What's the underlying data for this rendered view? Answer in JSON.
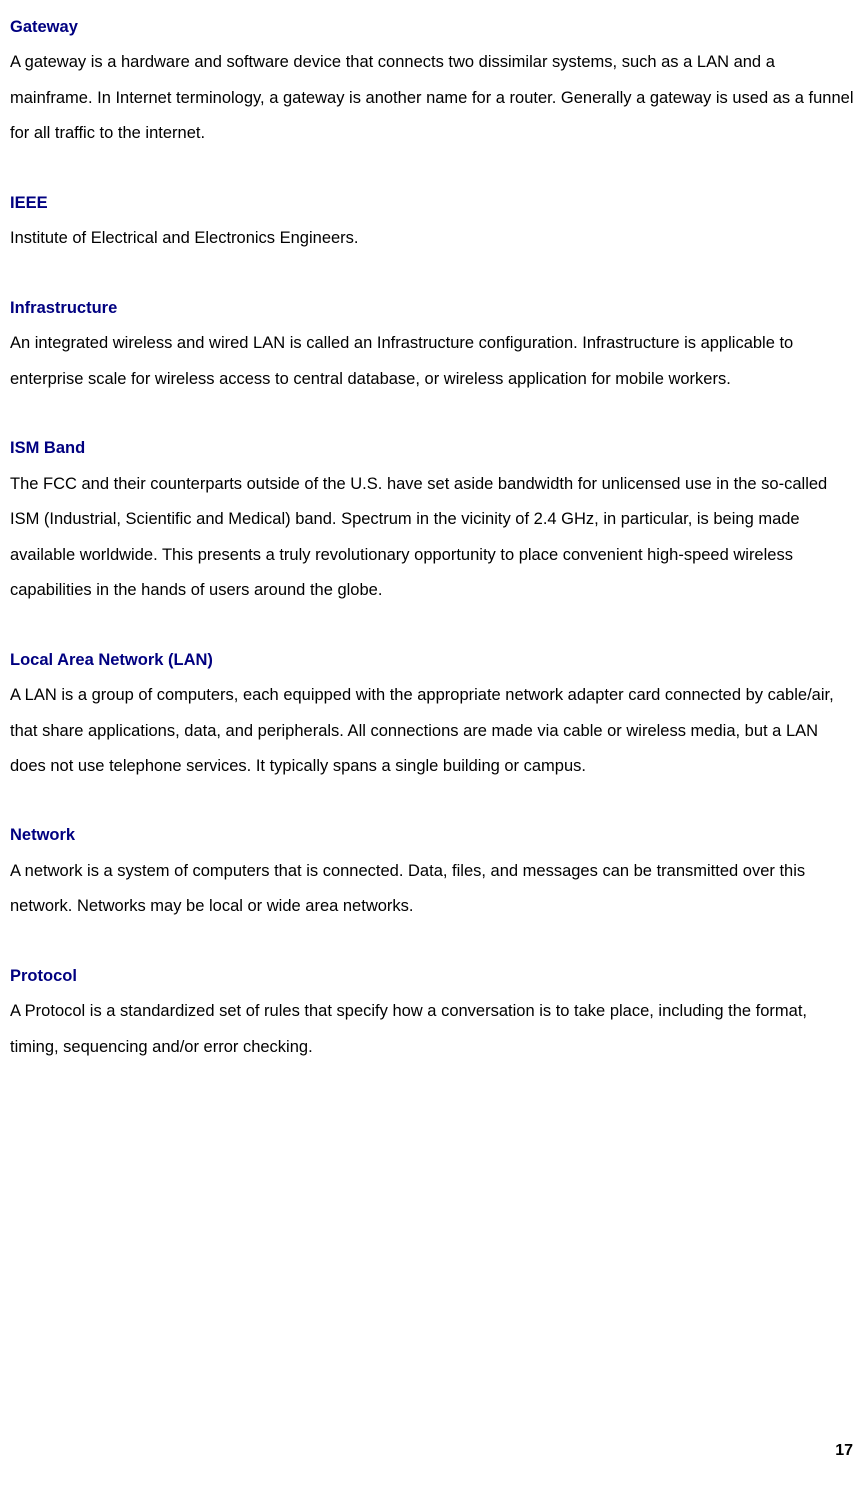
{
  "entries": [
    {
      "term": "Gateway",
      "definition": "A gateway is a hardware and software device that connects two dissimilar systems, such as a LAN and a mainframe. In Internet terminology, a gateway is another name for a router. Generally a gateway is used as a funnel for all traffic to the internet."
    },
    {
      "term": "IEEE",
      "definition": "Institute of Electrical and Electronics Engineers."
    },
    {
      "term": "Infrastructure",
      "definition": "An integrated wireless and wired LAN is called an Infrastructure configuration. Infrastructure is applicable to enterprise scale for wireless access to central database, or wireless application for mobile workers."
    },
    {
      "term": "ISM Band",
      "definition": "The FCC and their counterparts outside of the U.S. have set aside bandwidth for unlicensed use in the so-called ISM (Industrial, Scientific and Medical) band. Spectrum in the vicinity of 2.4 GHz, in particular, is being made available worldwide. This presents a truly revolutionary opportunity to place convenient high-speed wireless capabilities in the hands of users around the globe."
    },
    {
      "term": "Local Area Network (LAN)",
      "definition": "A LAN is a group of computers, each equipped with the appropriate network adapter card connected by cable/air, that share applications, data, and peripherals. All connections are made via cable or wireless media, but a LAN does not use telephone services. It typically spans a single building or campus."
    },
    {
      "term": "Network",
      "definition": "A network is a system of computers that is connected. Data, files, and messages can be transmitted over this network. Networks may be local or wide area networks."
    },
    {
      "term": "Protocol",
      "definition": "A Protocol is a standardized set of rules that specify how a conversation is to take place, including the format, timing, sequencing and/or error checking."
    }
  ],
  "page_number": "17",
  "colors": {
    "term_color": "#000080",
    "text_color": "#000000",
    "background": "#ffffff"
  },
  "typography": {
    "body_fontsize": 16.5,
    "line_height": 2.15,
    "term_weight": "bold"
  }
}
